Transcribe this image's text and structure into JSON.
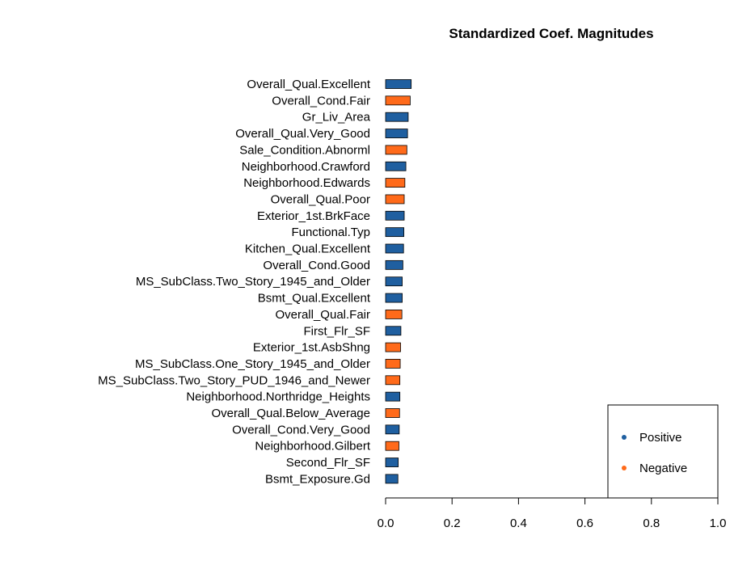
{
  "chart_data": {
    "type": "bar",
    "orientation": "horizontal",
    "title": "Standardized Coef. Magnitudes",
    "xlabel": "",
    "ylabel": "",
    "xlim": [
      0,
      1
    ],
    "xticks": [
      "0.0",
      "0.2",
      "0.4",
      "0.6",
      "0.8",
      "1.0"
    ],
    "grid": false,
    "legend": {
      "placement": "bottom-right",
      "entries": [
        {
          "label": "Positive",
          "color": "#1F5FA0"
        },
        {
          "label": "Negative",
          "color": "#FF6A1A"
        }
      ]
    },
    "colors": {
      "Positive": "#1F5FA0",
      "Negative": "#FF6A1A"
    },
    "categories": [
      "Overall_Qual.Excellent",
      "Overall_Cond.Fair",
      "Gr_Liv_Area",
      "Overall_Qual.Very_Good",
      "Sale_Condition.Abnorml",
      "Neighborhood.Crawford",
      "Neighborhood.Edwards",
      "Overall_Qual.Poor",
      "Exterior_1st.BrkFace",
      "Functional.Typ",
      "Kitchen_Qual.Excellent",
      "Overall_Cond.Good",
      "MS_SubClass.Two_Story_1945_and_Older",
      "Bsmt_Qual.Excellent",
      "Overall_Qual.Fair",
      "First_Flr_SF",
      "Exterior_1st.AsbShng",
      "MS_SubClass.One_Story_1945_and_Older",
      "MS_SubClass.Two_Story_PUD_1946_and_Newer",
      "Neighborhood.Northridge_Heights",
      "Overall_Qual.Below_Average",
      "Overall_Cond.Very_Good",
      "Neighborhood.Gilbert",
      "Second_Flr_SF",
      "Bsmt_Exposure.Gd"
    ],
    "values": [
      0.077,
      0.074,
      0.068,
      0.066,
      0.064,
      0.061,
      0.058,
      0.056,
      0.056,
      0.055,
      0.054,
      0.052,
      0.05,
      0.05,
      0.049,
      0.046,
      0.045,
      0.044,
      0.043,
      0.043,
      0.042,
      0.041,
      0.04,
      0.038,
      0.037
    ],
    "signs": [
      "Positive",
      "Negative",
      "Positive",
      "Positive",
      "Negative",
      "Positive",
      "Negative",
      "Negative",
      "Positive",
      "Positive",
      "Positive",
      "Positive",
      "Positive",
      "Positive",
      "Negative",
      "Positive",
      "Negative",
      "Negative",
      "Negative",
      "Positive",
      "Negative",
      "Positive",
      "Negative",
      "Positive",
      "Positive"
    ]
  }
}
